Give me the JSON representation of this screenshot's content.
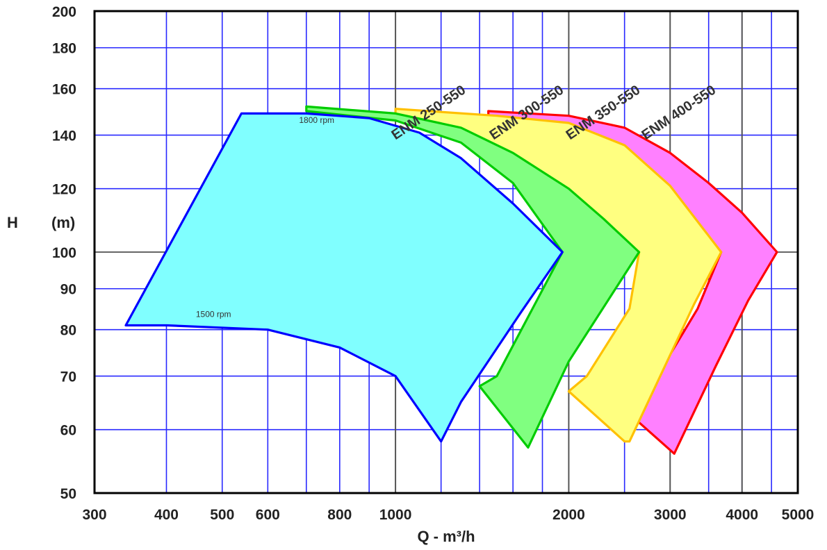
{
  "chart_data": {
    "type": "area",
    "xlabel": "Q - m³/h",
    "ylabel": "H",
    "ylabel_unit": "(m)",
    "x_scale": "log",
    "y_scale": "log",
    "xlim": [
      300,
      5000
    ],
    "ylim": [
      50,
      200
    ],
    "x_ticks": [
      300,
      400,
      500,
      600,
      800,
      1000,
      2000,
      3000,
      4000,
      5000
    ],
    "y_ticks": [
      50,
      60,
      70,
      80,
      90,
      100,
      120,
      140,
      160,
      180,
      200
    ],
    "x_grid_blue": [
      400,
      500,
      600,
      700,
      800,
      900,
      1200,
      1400,
      1600,
      1800,
      2500,
      3500,
      4000,
      4500
    ],
    "x_grid_dark": [
      1000,
      2000,
      3000,
      4000
    ],
    "y_grid_blue": [
      60,
      70,
      80,
      90,
      120,
      140,
      160,
      180
    ],
    "y_grid_dark": [
      100
    ],
    "grid": true,
    "series": [
      {
        "name": "ENM 400-550",
        "color": "#ff0000",
        "fill": "#ff80ff",
        "points": [
          [
            1450,
            150
          ],
          [
            2000,
            148
          ],
          [
            2500,
            143
          ],
          [
            3000,
            133
          ],
          [
            3500,
            122
          ],
          [
            4000,
            112
          ],
          [
            4600,
            100
          ],
          [
            4100,
            87
          ],
          [
            3600,
            72
          ],
          [
            3050,
            56
          ],
          [
            2600,
            62
          ],
          [
            2950,
            73
          ],
          [
            3350,
            85
          ],
          [
            3680,
            100
          ],
          [
            3300,
            110
          ],
          [
            2900,
            120
          ],
          [
            2600,
            130
          ],
          [
            2300,
            139
          ],
          [
            1900,
            144
          ],
          [
            1450,
            148
          ]
        ]
      },
      {
        "name": "ENM 350-550",
        "color": "#ffc000",
        "fill": "#ffff80",
        "points": [
          [
            1000,
            151
          ],
          [
            1500,
            148
          ],
          [
            2000,
            145
          ],
          [
            2500,
            136
          ],
          [
            3000,
            121
          ],
          [
            3680,
            100
          ],
          [
            3300,
            86
          ],
          [
            2550,
            58
          ],
          [
            2500,
            58
          ],
          [
            2000,
            67
          ],
          [
            2150,
            70
          ],
          [
            2550,
            85
          ],
          [
            2650,
            100
          ],
          [
            2100,
            112
          ],
          [
            1800,
            125
          ],
          [
            1500,
            135
          ],
          [
            1200,
            141
          ],
          [
            1000,
            147
          ]
        ]
      },
      {
        "name": "ENM 300-550",
        "color": "#00cc00",
        "fill": "#80ff80",
        "points": [
          [
            700,
            152
          ],
          [
            1000,
            149
          ],
          [
            1300,
            143
          ],
          [
            1600,
            133
          ],
          [
            2000,
            120
          ],
          [
            2300,
            110
          ],
          [
            2650,
            100
          ],
          [
            2000,
            73
          ],
          [
            1700,
            57
          ],
          [
            1400,
            68
          ],
          [
            1500,
            70
          ],
          [
            1950,
            100
          ],
          [
            1600,
            122
          ],
          [
            1300,
            137
          ],
          [
            1000,
            146
          ],
          [
            700,
            150
          ]
        ]
      },
      {
        "name": "ENM 250-550",
        "color": "#0000ff",
        "fill": "#80ffff",
        "points": [
          [
            540,
            149
          ],
          [
            700,
            149
          ],
          [
            900,
            147
          ],
          [
            1100,
            141
          ],
          [
            1300,
            131
          ],
          [
            1600,
            115
          ],
          [
            1950,
            100
          ],
          [
            1650,
            84
          ],
          [
            1300,
            65
          ],
          [
            1200,
            58
          ],
          [
            1000,
            70
          ],
          [
            800,
            76
          ],
          [
            600,
            80
          ],
          [
            400,
            81
          ],
          [
            340,
            81
          ]
        ]
      }
    ],
    "annotations": [
      {
        "text": "1800 rpm",
        "x": 680,
        "y": 145
      },
      {
        "text": "1500 rpm",
        "x": 450,
        "y": 83
      },
      {
        "text": "ENM 250-550",
        "x": 1000,
        "y": 138
      },
      {
        "text": "ENM 300-550",
        "x": 1480,
        "y": 138
      },
      {
        "text": "ENM 350-550",
        "x": 2010,
        "y": 138
      },
      {
        "text": "ENM 400-550",
        "x": 2720,
        "y": 138
      }
    ]
  }
}
